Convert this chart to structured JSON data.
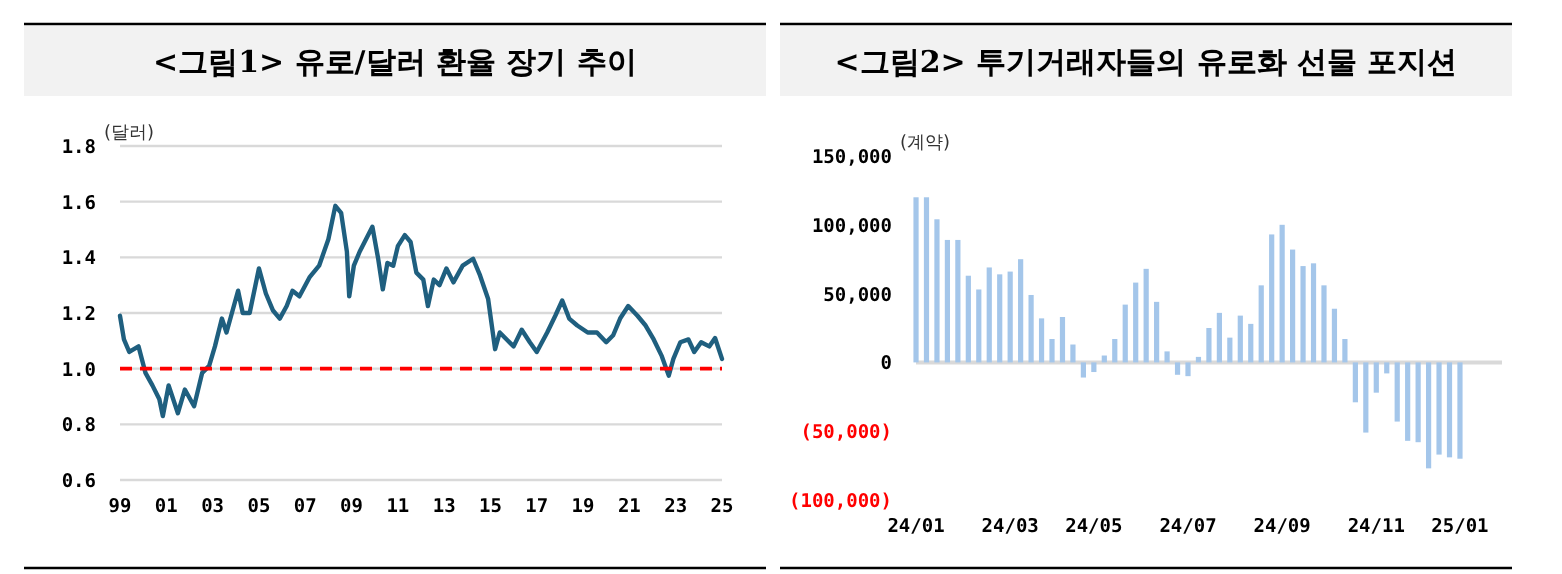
{
  "chart_data": [
    {
      "type": "line",
      "title": "<그림1> 유로/달러 환율 장기 추이",
      "ylabel": "(달러)",
      "x": [
        1999.0,
        1999.17,
        1999.4,
        1999.8,
        2000.1,
        2000.4,
        2000.7,
        2000.85,
        2001.1,
        2001.5,
        2001.8,
        2002.2,
        2002.55,
        2002.85,
        2003.1,
        2003.4,
        2003.6,
        2004.1,
        2004.3,
        2004.6,
        2005.0,
        2005.3,
        2005.6,
        2005.9,
        2006.2,
        2006.45,
        2006.75,
        2007.2,
        2007.6,
        2008.0,
        2008.3,
        2008.55,
        2008.8,
        2008.9,
        2009.1,
        2009.35,
        2009.9,
        2010.15,
        2010.35,
        2010.55,
        2010.8,
        2011.0,
        2011.3,
        2011.55,
        2011.8,
        2012.1,
        2012.3,
        2012.55,
        2012.8,
        2013.1,
        2013.4,
        2013.8,
        2014.25,
        2014.55,
        2014.9,
        2015.2,
        2015.4,
        2015.7,
        2016.0,
        2016.35,
        2016.7,
        2017.0,
        2017.45,
        2017.8,
        2018.1,
        2018.4,
        2018.75,
        2019.2,
        2019.6,
        2020.0,
        2020.3,
        2020.6,
        2020.95,
        2021.35,
        2021.7,
        2022.05,
        2022.4,
        2022.7,
        2022.9,
        2023.2,
        2023.55,
        2023.8,
        2024.1,
        2024.45,
        2024.7,
        2025.0
      ],
      "series": [
        {
          "color": "#1f5f7f",
          "values": [
            1.19,
            1.105,
            1.06,
            1.08,
            0.985,
            0.94,
            0.89,
            0.83,
            0.94,
            0.84,
            0.925,
            0.865,
            0.985,
            1.01,
            1.08,
            1.18,
            1.13,
            1.28,
            1.2,
            1.2,
            1.36,
            1.27,
            1.21,
            1.18,
            1.225,
            1.28,
            1.26,
            1.33,
            1.37,
            1.465,
            1.585,
            1.56,
            1.42,
            1.26,
            1.37,
            1.42,
            1.51,
            1.395,
            1.285,
            1.38,
            1.37,
            1.44,
            1.48,
            1.455,
            1.345,
            1.32,
            1.225,
            1.32,
            1.3,
            1.36,
            1.31,
            1.37,
            1.395,
            1.335,
            1.25,
            1.07,
            1.13,
            1.105,
            1.08,
            1.14,
            1.095,
            1.06,
            1.13,
            1.19,
            1.245,
            1.18,
            1.155,
            1.13,
            1.13,
            1.095,
            1.12,
            1.18,
            1.225,
            1.19,
            1.155,
            1.105,
            1.045,
            0.975,
            1.035,
            1.095,
            1.105,
            1.06,
            1.095,
            1.08,
            1.11,
            1.035
          ]
        }
      ],
      "xlim": [
        1999,
        2025
      ],
      "xticks": [
        {
          "value": 1999,
          "label": "99"
        },
        {
          "value": 2001,
          "label": "01"
        },
        {
          "value": 2003,
          "label": "03"
        },
        {
          "value": 2005,
          "label": "05"
        },
        {
          "value": 2007,
          "label": "07"
        },
        {
          "value": 2009,
          "label": "09"
        },
        {
          "value": 2011,
          "label": "11"
        },
        {
          "value": 2013,
          "label": "13"
        },
        {
          "value": 2015,
          "label": "15"
        },
        {
          "value": 2017,
          "label": "17"
        },
        {
          "value": 2019,
          "label": "19"
        },
        {
          "value": 2021,
          "label": "21"
        },
        {
          "value": 2023,
          "label": "23"
        },
        {
          "value": 2025,
          "label": "25"
        }
      ],
      "ylim": [
        0.6,
        1.8
      ],
      "yticks": [
        0.6,
        0.8,
        {
          "value": 1,
          "label": "1.0"
        },
        1.2,
        1.4,
        1.6,
        1.8
      ],
      "grid": "y",
      "ref_lines": [
        {
          "axis": "y",
          "value": 1,
          "color": "#ff0000",
          "line_style": "dashed"
        }
      ]
    },
    {
      "type": "bar",
      "title": "<그림2> 투기거래자들의 유로화 선물 포지션",
      "ylabel": "(계약)",
      "categories": [
        "24/01",
        null,
        null,
        null,
        null,
        null,
        null,
        null,
        null,
        "24/03",
        null,
        null,
        null,
        null,
        null,
        null,
        null,
        "24/05",
        null,
        null,
        null,
        null,
        null,
        null,
        null,
        null,
        "24/07",
        null,
        null,
        null,
        null,
        null,
        null,
        null,
        null,
        "24/09",
        null,
        null,
        null,
        null,
        null,
        null,
        null,
        null,
        "24/11",
        null,
        null,
        null,
        null,
        null,
        null,
        null,
        "25/01"
      ],
      "series": [
        {
          "color": "#a4c6ea",
          "values": [
            120000,
            120000,
            104000,
            89000,
            89000,
            63000,
            53000,
            69000,
            64000,
            66000,
            75000,
            49000,
            32000,
            17000,
            33000,
            13000,
            -11000,
            -7000,
            5000,
            17000,
            42000,
            58000,
            68000,
            44000,
            8000,
            -9000,
            -10000,
            4000,
            25000,
            36000,
            18000,
            34000,
            28000,
            56000,
            93000,
            100000,
            82000,
            70000,
            72000,
            56000,
            39000,
            17000,
            -29000,
            -51000,
            -22000,
            -8000,
            -43000,
            -57000,
            -58000,
            -77000,
            -67000,
            -69000,
            -70000
          ]
        }
      ],
      "ylim": [
        -100000,
        150000
      ],
      "yticks": [
        {
          "value": -100000,
          "label": "(100,000)"
        },
        {
          "value": -50000,
          "label": "(50,000)"
        },
        0,
        {
          "value": 50000,
          "label": "50,000"
        },
        {
          "value": 100000,
          "label": "100,000"
        },
        {
          "value": 150000,
          "label": "150,000"
        }
      ]
    }
  ]
}
